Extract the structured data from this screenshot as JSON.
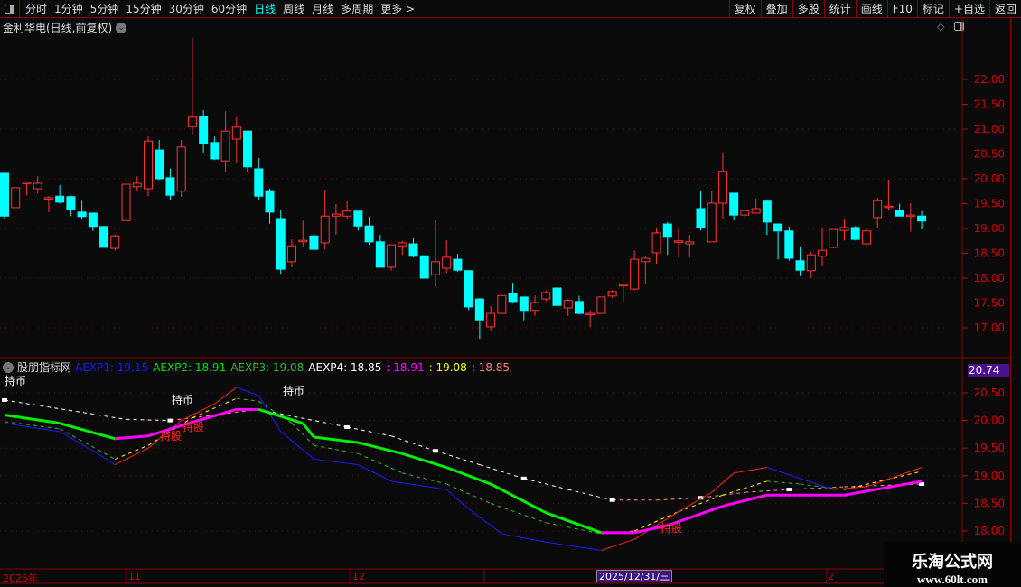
{
  "toolbar": {
    "periods": [
      "分时",
      "1分钟",
      "5分钟",
      "15分钟",
      "30分钟",
      "60分钟",
      "日线",
      "周线",
      "月线",
      "多周期",
      "更多 >"
    ],
    "active": "日线",
    "buttons": [
      "复权",
      "叠加",
      "多股",
      "统计",
      "画线",
      "F10",
      "标记",
      "+自选",
      "返回"
    ]
  },
  "main": {
    "title": "金利华电(日线,前复权)",
    "diamond": "◇"
  },
  "indicator": {
    "name": "股朋指标网",
    "values": [
      {
        "label": "AEXP1: 19.15",
        "color": "#1a1aff"
      },
      {
        "label": "AEXP2: 18.91",
        "color": "#00e000"
      },
      {
        "label": "AEXP3: 19.08",
        "color": "#33bb33"
      },
      {
        "label": "AEXP4: 18.85",
        "color": "#ffffff"
      },
      {
        "label": ": 18.91",
        "color": "#ff00ff"
      },
      {
        "label": ": 19.08",
        "color": "#ffff00"
      },
      {
        "label": ": 18.85",
        "color": "#ff8080"
      }
    ],
    "current_value": "20.74",
    "signals": [
      {
        "text": "持币",
        "color": "#ffffff"
      },
      {
        "text": "持币",
        "color": "#ffffff"
      },
      {
        "text": "持币",
        "color": "#ffffff"
      },
      {
        "text": "持股",
        "color": "#ff2020"
      },
      {
        "text": "持股",
        "color": "#ff2020"
      },
      {
        "text": "持股",
        "color": "#ff2020"
      }
    ]
  },
  "time_axis": {
    "labels": [
      "2025年",
      "11",
      "12",
      "2",
      "2025/12/31/三"
    ]
  },
  "watermark": {
    "line1": "乐淘公式网",
    "line2": "www.60lt.com"
  },
  "colors": {
    "up": "#ff3333",
    "down": "#00ffff",
    "axis": "#cc0000",
    "border": "#8b0000"
  },
  "chart_data": [
    {
      "type": "candlestick",
      "yticks": [
        "22.00",
        "21.50",
        "21.00",
        "20.50",
        "20.00",
        "19.50",
        "19.00",
        "18.50",
        "18.00",
        "17.50",
        "17.00"
      ],
      "ylim": [
        16.55,
        23.2
      ],
      "ohlc": [
        [
          20.11,
          20.13,
          19.2,
          19.25
        ],
        [
          19.42,
          19.82,
          19.42,
          19.82
        ],
        [
          19.93,
          19.95,
          19.67,
          19.93
        ],
        [
          19.8,
          20.05,
          19.71,
          19.91
        ],
        [
          19.62,
          19.65,
          19.33,
          19.62
        ],
        [
          19.65,
          19.87,
          19.5,
          19.53
        ],
        [
          19.64,
          19.66,
          19.25,
          19.38
        ],
        [
          19.33,
          19.56,
          19.18,
          19.24
        ],
        [
          19.31,
          19.31,
          18.95,
          19.04
        ],
        [
          19.04,
          19.05,
          18.62,
          18.62
        ],
        [
          18.6,
          18.88,
          18.56,
          18.85
        ],
        [
          19.16,
          20.09,
          19.09,
          19.89
        ],
        [
          19.84,
          20.05,
          19.75,
          19.91
        ],
        [
          19.8,
          20.85,
          19.65,
          20.76
        ],
        [
          20.58,
          20.78,
          19.98,
          20.0
        ],
        [
          20.02,
          20.2,
          19.58,
          19.67
        ],
        [
          19.75,
          20.78,
          19.64,
          20.64
        ],
        [
          21.05,
          22.85,
          20.89,
          21.24
        ],
        [
          21.25,
          21.38,
          20.53,
          20.71
        ],
        [
          20.73,
          20.85,
          20.38,
          20.4
        ],
        [
          20.36,
          21.36,
          20.13,
          20.96
        ],
        [
          20.8,
          21.24,
          20.33,
          21.04
        ],
        [
          20.96,
          20.96,
          20.13,
          20.24
        ],
        [
          20.2,
          20.42,
          19.58,
          19.65
        ],
        [
          19.76,
          19.8,
          19.1,
          19.33
        ],
        [
          19.2,
          19.38,
          18.09,
          18.18
        ],
        [
          18.33,
          18.78,
          18.22,
          18.65
        ],
        [
          18.76,
          19.16,
          18.62,
          18.76
        ],
        [
          18.85,
          18.9,
          18.55,
          18.58
        ],
        [
          18.71,
          19.78,
          18.58,
          19.25
        ],
        [
          19.25,
          19.49,
          18.87,
          19.29
        ],
        [
          19.25,
          19.55,
          19.2,
          19.35
        ],
        [
          19.35,
          19.35,
          18.96,
          19.05
        ],
        [
          19.05,
          19.24,
          18.67,
          18.73
        ],
        [
          18.73,
          18.87,
          18.22,
          18.22
        ],
        [
          18.22,
          18.67,
          18.15,
          18.67
        ],
        [
          18.65,
          18.75,
          18.47,
          18.71
        ],
        [
          18.69,
          18.82,
          18.42,
          18.44
        ],
        [
          18.45,
          18.45,
          18.0,
          18.0
        ],
        [
          18.07,
          19.16,
          17.82,
          18.33
        ],
        [
          18.2,
          18.76,
          18.1,
          18.42
        ],
        [
          18.38,
          18.49,
          18.13,
          18.16
        ],
        [
          18.15,
          18.15,
          17.36,
          17.42
        ],
        [
          17.58,
          17.6,
          16.78,
          17.16
        ],
        [
          17.02,
          17.44,
          16.93,
          17.29
        ],
        [
          17.29,
          17.65,
          17.29,
          17.65
        ],
        [
          17.69,
          17.91,
          17.51,
          17.53
        ],
        [
          17.62,
          17.62,
          17.15,
          17.35
        ],
        [
          17.35,
          17.65,
          17.24,
          17.51
        ],
        [
          17.58,
          17.75,
          17.53,
          17.71
        ],
        [
          17.8,
          17.8,
          17.43,
          17.45
        ],
        [
          17.4,
          17.58,
          17.24,
          17.55
        ],
        [
          17.53,
          17.64,
          17.27,
          17.29
        ],
        [
          17.29,
          17.35,
          17.02,
          17.29
        ],
        [
          17.29,
          17.62,
          17.29,
          17.62
        ],
        [
          17.64,
          17.76,
          17.6,
          17.73
        ],
        [
          17.87,
          17.89,
          17.53,
          17.87
        ],
        [
          17.78,
          18.56,
          17.75,
          18.38
        ],
        [
          18.33,
          18.45,
          17.89,
          18.4
        ],
        [
          18.51,
          19.02,
          18.29,
          18.91
        ],
        [
          19.09,
          19.13,
          18.47,
          18.84
        ],
        [
          18.75,
          19.0,
          18.42,
          18.75
        ],
        [
          18.69,
          18.87,
          18.42,
          18.73
        ],
        [
          19.4,
          19.75,
          18.96,
          19.02
        ],
        [
          18.73,
          19.75,
          18.73,
          19.51
        ],
        [
          19.51,
          20.53,
          19.2,
          20.15
        ],
        [
          19.71,
          19.71,
          19.16,
          19.27
        ],
        [
          19.27,
          19.55,
          19.2,
          19.36
        ],
        [
          19.31,
          19.6,
          19.3,
          19.4
        ],
        [
          19.55,
          19.57,
          18.87,
          19.13
        ],
        [
          19.09,
          19.09,
          18.38,
          18.95
        ],
        [
          18.95,
          19.04,
          18.35,
          18.4
        ],
        [
          18.35,
          18.62,
          18.04,
          18.16
        ],
        [
          18.15,
          18.53,
          18.0,
          18.47
        ],
        [
          18.44,
          19.0,
          18.25,
          18.56
        ],
        [
          18.62,
          18.98,
          18.6,
          18.98
        ],
        [
          18.96,
          19.2,
          18.76,
          19.02
        ],
        [
          19.02,
          19.05,
          18.76,
          18.78
        ],
        [
          18.69,
          19.02,
          18.65,
          18.95
        ],
        [
          19.22,
          19.62,
          19.02,
          19.56
        ],
        [
          19.45,
          19.98,
          19.36,
          19.45
        ],
        [
          19.36,
          19.5,
          19.25,
          19.25
        ],
        [
          19.27,
          19.51,
          18.93,
          19.27
        ],
        [
          19.25,
          19.35,
          18.98,
          19.15
        ]
      ]
    },
    {
      "type": "line",
      "yticks": [
        "20.50",
        "20.00",
        "19.50",
        "19.00",
        "18.50",
        "18.00"
      ],
      "ylim": [
        17.35,
        20.85
      ],
      "series": [
        {
          "name": "AEXP4",
          "style": "dashed",
          "colors": [
            "#ffffff",
            "#ff9090"
          ],
          "points": [
            [
              0,
              20.37
            ],
            [
              11,
              20.02
            ],
            [
              15,
              20.0
            ],
            [
              23,
              20.2
            ],
            [
              31,
              19.88
            ],
            [
              35,
              19.72
            ],
            [
              39,
              19.45
            ],
            [
              43,
              19.2
            ],
            [
              47,
              18.95
            ],
            [
              51,
              18.75
            ],
            [
              55,
              18.56
            ],
            [
              59,
              18.56
            ],
            [
              63,
              18.6
            ],
            [
              67,
              18.7
            ],
            [
              71,
              18.75
            ],
            [
              76,
              18.8
            ],
            [
              83,
              18.85
            ]
          ]
        },
        {
          "name": "AEXP3",
          "style": "dashed",
          "colors": [
            "#33bb33",
            "#ffff00"
          ],
          "points": [
            [
              0,
              19.98
            ],
            [
              5,
              19.85
            ],
            [
              10,
              19.3
            ],
            [
              13,
              19.55
            ],
            [
              17,
              20.05
            ],
            [
              21,
              20.4
            ],
            [
              23,
              20.35
            ],
            [
              26,
              19.95
            ],
            [
              28,
              19.55
            ],
            [
              32,
              19.4
            ],
            [
              36,
              19.05
            ],
            [
              40,
              18.85
            ],
            [
              44,
              18.5
            ],
            [
              49,
              18.15
            ],
            [
              54,
              17.95
            ],
            [
              57,
              18.0
            ],
            [
              61,
              18.35
            ],
            [
              65,
              18.65
            ],
            [
              69,
              18.9
            ],
            [
              72,
              18.85
            ],
            [
              76,
              18.75
            ],
            [
              83,
              19.08
            ]
          ]
        },
        {
          "name": "AEXP1",
          "style": "solid",
          "colors": [
            "#1a1aff",
            "#ff2020"
          ],
          "points": [
            [
              0,
              19.95
            ],
            [
              5,
              19.8
            ],
            [
              8,
              19.45
            ],
            [
              10,
              19.2
            ],
            [
              13,
              19.5
            ],
            [
              16,
              20.0
            ],
            [
              19,
              20.3
            ],
            [
              21,
              20.6
            ],
            [
              23,
              20.45
            ],
            [
              25,
              19.8
            ],
            [
              28,
              19.3
            ],
            [
              32,
              19.2
            ],
            [
              35,
              18.9
            ],
            [
              40,
              18.75
            ],
            [
              42,
              18.4
            ],
            [
              45,
              17.95
            ],
            [
              49,
              17.8
            ],
            [
              54,
              17.65
            ],
            [
              57,
              17.85
            ],
            [
              61,
              18.35
            ],
            [
              64,
              18.7
            ],
            [
              66,
              19.05
            ],
            [
              69,
              19.15
            ],
            [
              72,
              18.95
            ],
            [
              75,
              18.75
            ],
            [
              78,
              18.8
            ],
            [
              83,
              19.15
            ]
          ]
        },
        {
          "name": "AEXP2",
          "style": "thick",
          "colors": [
            "#00ee00",
            "#ff00ff"
          ],
          "points": [
            [
              0,
              20.1
            ],
            [
              5,
              19.95
            ],
            [
              10,
              19.67
            ],
            [
              13,
              19.72
            ],
            [
              17,
              19.97
            ],
            [
              21,
              20.2
            ],
            [
              23,
              20.2
            ],
            [
              27,
              19.95
            ],
            [
              28,
              19.7
            ],
            [
              32,
              19.6
            ],
            [
              36,
              19.4
            ],
            [
              40,
              19.15
            ],
            [
              44,
              18.85
            ],
            [
              49,
              18.33
            ],
            [
              54,
              17.97
            ],
            [
              57,
              17.97
            ],
            [
              60,
              18.1
            ],
            [
              65,
              18.45
            ],
            [
              69,
              18.65
            ],
            [
              72,
              18.65
            ],
            [
              76,
              18.65
            ],
            [
              83,
              18.9
            ]
          ]
        }
      ]
    }
  ]
}
